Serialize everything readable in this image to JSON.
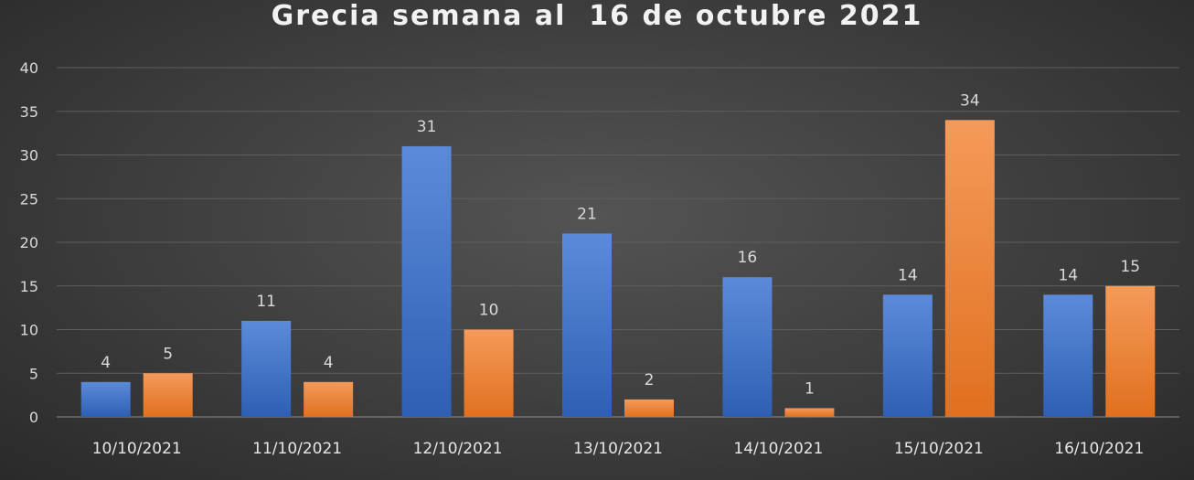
{
  "chart_data": {
    "type": "bar",
    "title": "Grecia semana al  16 de octubre 2021",
    "categories": [
      "10/10/2021",
      "11/10/2021",
      "12/10/2021",
      "13/10/2021",
      "14/10/2021",
      "15/10/2021",
      "16/10/2021"
    ],
    "series": [
      {
        "values": [
          4,
          11,
          31,
          21,
          16,
          14,
          14
        ],
        "color": "#4472c4"
      },
      {
        "values": [
          5,
          4,
          10,
          2,
          1,
          34,
          15
        ],
        "color": "#ed7d31"
      }
    ],
    "ylim": [
      0,
      40
    ],
    "yticks": [
      0,
      5,
      10,
      15,
      20,
      25,
      30,
      35,
      40
    ],
    "grid": true,
    "legend": "none",
    "background": "#404040"
  }
}
